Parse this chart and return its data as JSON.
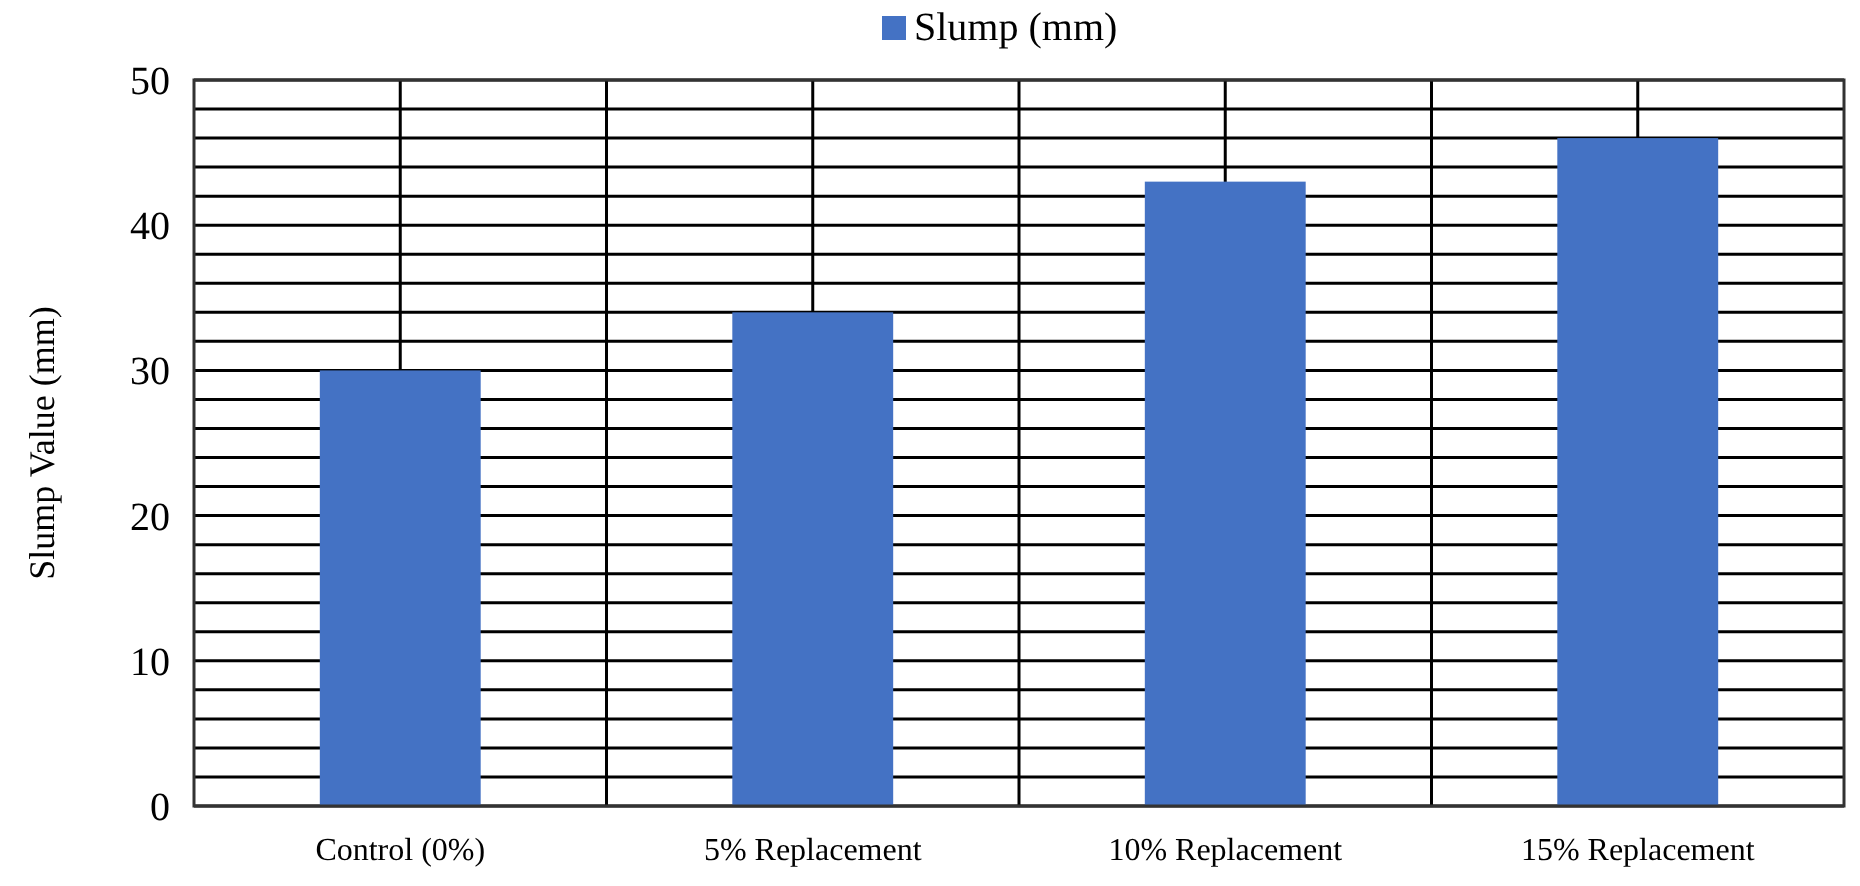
{
  "chart_data": {
    "type": "bar",
    "ylabel": "Slump Value (mm)",
    "categories": [
      "Control (0%)",
      "5% Replacement",
      "10% Replacement",
      "15% Replacement"
    ],
    "series": [
      {
        "name": "Slump (mm)",
        "color": "#4472c4",
        "values": [
          30,
          34,
          43,
          46
        ]
      }
    ],
    "ylim": [
      0,
      50
    ],
    "yticks": [
      0,
      {
        "value": 2,
        "label": null
      },
      {
        "value": 4,
        "label": null
      },
      {
        "value": 6,
        "label": null
      },
      {
        "value": 8,
        "label": null
      },
      10,
      {
        "value": 12,
        "label": null
      },
      {
        "value": 14,
        "label": null
      },
      {
        "value": 16,
        "label": null
      },
      {
        "value": 18,
        "label": null
      },
      20,
      {
        "value": 22,
        "label": null
      },
      {
        "value": 24,
        "label": null
      },
      {
        "value": 26,
        "label": null
      },
      {
        "value": 28,
        "label": null
      },
      30,
      {
        "value": 32,
        "label": null
      },
      {
        "value": 34,
        "label": null
      },
      {
        "value": 36,
        "label": null
      },
      {
        "value": 38,
        "label": null
      },
      40,
      {
        "value": 42,
        "label": null
      },
      {
        "value": 44,
        "label": null
      },
      {
        "value": 46,
        "label": null
      },
      {
        "value": 48,
        "label": null
      },
      50
    ],
    "grid": true,
    "legend": "top"
  }
}
